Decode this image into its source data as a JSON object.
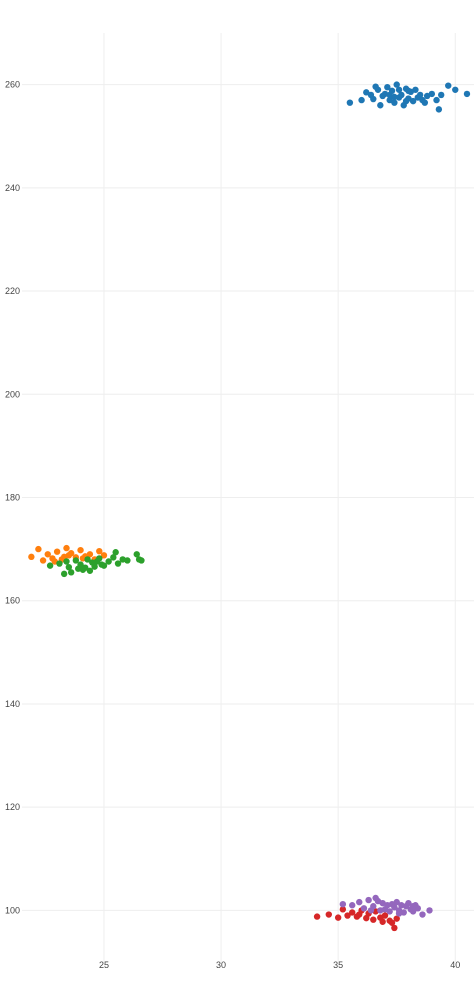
{
  "chart_data": {
    "type": "scatter",
    "title": "",
    "xlabel": "",
    "ylabel": "",
    "xlim": [
      21.5,
      40.8
    ],
    "ylim": [
      90,
      270
    ],
    "xticks": [
      25,
      30,
      35,
      40
    ],
    "yticks": [
      100,
      120,
      140,
      160,
      180,
      200,
      220,
      240,
      260
    ],
    "grid": true,
    "legend": "none",
    "series": [
      {
        "color": "#1f77b4",
        "points": [
          {
            "x": 35.5,
            "y": 256.5
          },
          {
            "x": 36.0,
            "y": 257.0
          },
          {
            "x": 36.2,
            "y": 258.5
          },
          {
            "x": 36.4,
            "y": 258.0
          },
          {
            "x": 36.5,
            "y": 257.2
          },
          {
            "x": 36.7,
            "y": 259.0
          },
          {
            "x": 36.8,
            "y": 256.0
          },
          {
            "x": 36.9,
            "y": 257.8
          },
          {
            "x": 37.0,
            "y": 258.2
          },
          {
            "x": 37.1,
            "y": 259.5
          },
          {
            "x": 37.2,
            "y": 257.0
          },
          {
            "x": 37.3,
            "y": 258.8
          },
          {
            "x": 37.4,
            "y": 256.5
          },
          {
            "x": 37.5,
            "y": 260.0
          },
          {
            "x": 37.6,
            "y": 257.5
          },
          {
            "x": 37.7,
            "y": 258.0
          },
          {
            "x": 37.8,
            "y": 256.0
          },
          {
            "x": 37.9,
            "y": 259.2
          },
          {
            "x": 38.0,
            "y": 257.3
          },
          {
            "x": 38.1,
            "y": 258.6
          },
          {
            "x": 38.2,
            "y": 256.8
          },
          {
            "x": 38.3,
            "y": 259.0
          },
          {
            "x": 38.4,
            "y": 257.5
          },
          {
            "x": 38.5,
            "y": 258.0
          },
          {
            "x": 38.7,
            "y": 256.5
          },
          {
            "x": 38.8,
            "y": 257.8
          },
          {
            "x": 39.0,
            "y": 258.2
          },
          {
            "x": 39.2,
            "y": 257.0
          },
          {
            "x": 39.4,
            "y": 258.0
          },
          {
            "x": 39.7,
            "y": 259.8
          },
          {
            "x": 40.0,
            "y": 259.0
          },
          {
            "x": 40.5,
            "y": 258.2
          },
          {
            "x": 37.2,
            "y": 258.0
          },
          {
            "x": 37.6,
            "y": 259.0
          },
          {
            "x": 38.0,
            "y": 258.8
          },
          {
            "x": 37.4,
            "y": 257.6
          },
          {
            "x": 36.6,
            "y": 259.6
          },
          {
            "x": 39.3,
            "y": 255.2
          },
          {
            "x": 37.9,
            "y": 256.8
          },
          {
            "x": 38.6,
            "y": 257.0
          }
        ]
      },
      {
        "color": "#ff7f0e",
        "points": [
          {
            "x": 21.9,
            "y": 168.5
          },
          {
            "x": 22.2,
            "y": 170.0
          },
          {
            "x": 22.4,
            "y": 167.8
          },
          {
            "x": 22.6,
            "y": 169.0
          },
          {
            "x": 22.8,
            "y": 168.2
          },
          {
            "x": 23.0,
            "y": 169.5
          },
          {
            "x": 23.2,
            "y": 168.0
          },
          {
            "x": 23.4,
            "y": 170.2
          },
          {
            "x": 23.5,
            "y": 168.8
          },
          {
            "x": 23.6,
            "y": 169.2
          },
          {
            "x": 23.8,
            "y": 168.4
          },
          {
            "x": 24.0,
            "y": 169.8
          },
          {
            "x": 24.2,
            "y": 168.6
          },
          {
            "x": 24.4,
            "y": 169.0
          },
          {
            "x": 24.6,
            "y": 168.0
          },
          {
            "x": 24.8,
            "y": 169.6
          },
          {
            "x": 25.0,
            "y": 168.8
          },
          {
            "x": 23.3,
            "y": 168.5
          },
          {
            "x": 22.9,
            "y": 167.6
          },
          {
            "x": 24.1,
            "y": 168.2
          }
        ]
      },
      {
        "color": "#2ca02c",
        "points": [
          {
            "x": 22.7,
            "y": 166.8
          },
          {
            "x": 23.1,
            "y": 167.2
          },
          {
            "x": 23.3,
            "y": 165.2
          },
          {
            "x": 23.5,
            "y": 166.5
          },
          {
            "x": 23.6,
            "y": 165.5
          },
          {
            "x": 23.8,
            "y": 167.8
          },
          {
            "x": 23.9,
            "y": 166.2
          },
          {
            "x": 24.0,
            "y": 167.0
          },
          {
            "x": 24.2,
            "y": 166.4
          },
          {
            "x": 24.3,
            "y": 168.0
          },
          {
            "x": 24.4,
            "y": 165.8
          },
          {
            "x": 24.5,
            "y": 167.4
          },
          {
            "x": 24.6,
            "y": 166.6
          },
          {
            "x": 24.8,
            "y": 168.2
          },
          {
            "x": 24.9,
            "y": 167.0
          },
          {
            "x": 25.0,
            "y": 166.8
          },
          {
            "x": 25.2,
            "y": 167.6
          },
          {
            "x": 25.4,
            "y": 168.4
          },
          {
            "x": 25.6,
            "y": 167.2
          },
          {
            "x": 25.8,
            "y": 168.0
          },
          {
            "x": 26.0,
            "y": 167.8
          },
          {
            "x": 26.4,
            "y": 169.0
          },
          {
            "x": 26.6,
            "y": 167.8
          },
          {
            "x": 25.5,
            "y": 169.4
          },
          {
            "x": 24.7,
            "y": 167.6
          },
          {
            "x": 24.1,
            "y": 166.0
          },
          {
            "x": 26.5,
            "y": 168.0
          },
          {
            "x": 23.4,
            "y": 167.6
          }
        ]
      },
      {
        "color": "#d62728",
        "points": [
          {
            "x": 34.1,
            "y": 98.8
          },
          {
            "x": 34.6,
            "y": 99.2
          },
          {
            "x": 35.0,
            "y": 98.6
          },
          {
            "x": 35.2,
            "y": 100.2
          },
          {
            "x": 35.4,
            "y": 99.0
          },
          {
            "x": 35.6,
            "y": 99.6
          },
          {
            "x": 35.8,
            "y": 98.8
          },
          {
            "x": 36.0,
            "y": 100.0
          },
          {
            "x": 36.2,
            "y": 98.5
          },
          {
            "x": 36.3,
            "y": 99.4
          },
          {
            "x": 36.5,
            "y": 98.2
          },
          {
            "x": 36.6,
            "y": 99.8
          },
          {
            "x": 36.8,
            "y": 98.6
          },
          {
            "x": 37.0,
            "y": 99.0
          },
          {
            "x": 37.2,
            "y": 98.0
          },
          {
            "x": 37.3,
            "y": 97.6
          },
          {
            "x": 37.4,
            "y": 96.6
          },
          {
            "x": 37.5,
            "y": 98.4
          },
          {
            "x": 35.9,
            "y": 99.2
          },
          {
            "x": 36.9,
            "y": 97.8
          }
        ]
      },
      {
        "color": "#9467bd",
        "points": [
          {
            "x": 35.2,
            "y": 101.2
          },
          {
            "x": 35.6,
            "y": 101.0
          },
          {
            "x": 35.9,
            "y": 101.6
          },
          {
            "x": 36.1,
            "y": 100.4
          },
          {
            "x": 36.3,
            "y": 102.0
          },
          {
            "x": 36.5,
            "y": 100.8
          },
          {
            "x": 36.6,
            "y": 102.4
          },
          {
            "x": 36.8,
            "y": 100.0
          },
          {
            "x": 36.9,
            "y": 101.4
          },
          {
            "x": 37.0,
            "y": 100.2
          },
          {
            "x": 37.1,
            "y": 101.0
          },
          {
            "x": 37.2,
            "y": 99.8
          },
          {
            "x": 37.3,
            "y": 101.2
          },
          {
            "x": 37.4,
            "y": 100.6
          },
          {
            "x": 37.5,
            "y": 101.6
          },
          {
            "x": 37.6,
            "y": 100.0
          },
          {
            "x": 37.7,
            "y": 101.0
          },
          {
            "x": 37.8,
            "y": 99.6
          },
          {
            "x": 37.9,
            "y": 100.8
          },
          {
            "x": 38.0,
            "y": 101.4
          },
          {
            "x": 38.1,
            "y": 100.2
          },
          {
            "x": 38.2,
            "y": 99.8
          },
          {
            "x": 38.3,
            "y": 101.0
          },
          {
            "x": 38.4,
            "y": 100.4
          },
          {
            "x": 38.6,
            "y": 99.2
          },
          {
            "x": 38.9,
            "y": 100.0
          },
          {
            "x": 36.4,
            "y": 100.0
          },
          {
            "x": 37.6,
            "y": 99.4
          },
          {
            "x": 36.7,
            "y": 101.8
          },
          {
            "x": 38.2,
            "y": 100.8
          }
        ]
      }
    ]
  }
}
